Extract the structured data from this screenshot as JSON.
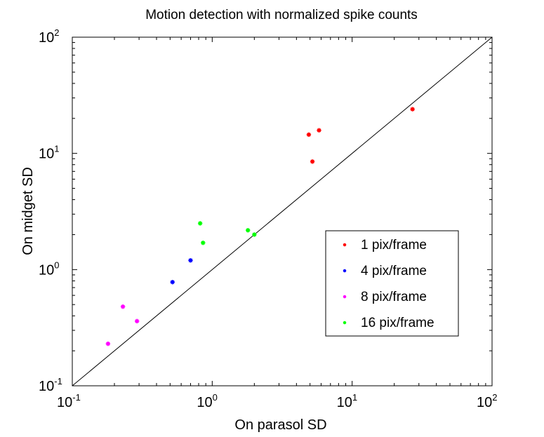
{
  "chart_data": {
    "type": "scatter",
    "title": "Motion detection with normalized spike counts",
    "xlabel": "On parasol SD",
    "ylabel": "On midget SD",
    "xscale": "log",
    "yscale": "log",
    "xlim": [
      0.1,
      100
    ],
    "ylim": [
      0.1,
      100
    ],
    "x_ticks": [
      {
        "base": "10",
        "exp": "-1"
      },
      {
        "base": "10",
        "exp": "0"
      },
      {
        "base": "10",
        "exp": "1"
      },
      {
        "base": "10",
        "exp": "2"
      }
    ],
    "y_ticks": [
      {
        "base": "10",
        "exp": "-1"
      },
      {
        "base": "10",
        "exp": "0"
      },
      {
        "base": "10",
        "exp": "1"
      },
      {
        "base": "10",
        "exp": "2"
      }
    ],
    "reference_line": "y = x",
    "grid": false,
    "legend_position": "lower-right",
    "series": [
      {
        "name": "1 pix/frame",
        "color": "#ff0000",
        "marker": "asterisk",
        "points": [
          [
            4.9,
            14.5
          ],
          [
            5.2,
            8.5
          ],
          [
            5.8,
            15.8
          ],
          [
            27,
            24
          ]
        ]
      },
      {
        "name": "4 pix/frame",
        "color": "#0000ff",
        "marker": "asterisk",
        "points": [
          [
            0.52,
            0.78
          ],
          [
            0.7,
            1.2
          ]
        ]
      },
      {
        "name": "8 pix/frame",
        "color": "#ff00ff",
        "marker": "asterisk",
        "points": [
          [
            0.18,
            0.23
          ],
          [
            0.23,
            0.48
          ],
          [
            0.29,
            0.36
          ]
        ]
      },
      {
        "name": "16 pix/frame",
        "color": "#00ff00",
        "marker": "asterisk",
        "points": [
          [
            0.82,
            2.5
          ],
          [
            0.86,
            1.7
          ],
          [
            1.8,
            2.18
          ],
          [
            2.0,
            2.0
          ]
        ]
      }
    ]
  }
}
